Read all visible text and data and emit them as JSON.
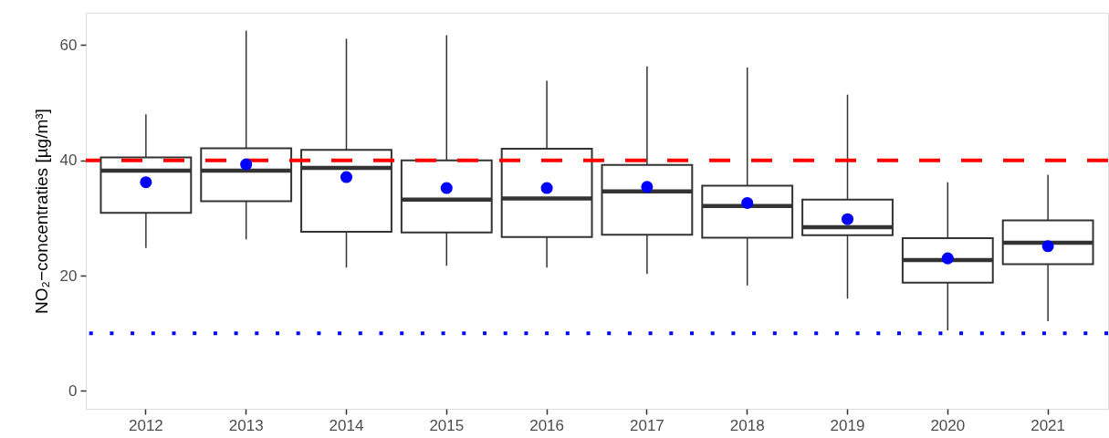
{
  "chart_data": {
    "type": "box",
    "ylabel": "NO₂−concentraties [µg/m³]",
    "categories": [
      "2012",
      "2013",
      "2014",
      "2015",
      "2016",
      "2017",
      "2018",
      "2019",
      "2020",
      "2021"
    ],
    "ylim": [
      -3.1,
      65.6
    ],
    "yticks": [
      0,
      20,
      40,
      60
    ],
    "grid": false,
    "series": [
      {
        "color": "#333333",
        "boxes": [
          {
            "low": 24.8,
            "q1": 30.9,
            "median": 38.2,
            "q3": 40.5,
            "high": 48.0
          },
          {
            "low": 26.3,
            "q1": 32.9,
            "median": 38.2,
            "q3": 42.1,
            "high": 62.5
          },
          {
            "low": 21.4,
            "q1": 27.6,
            "median": 38.7,
            "q3": 41.8,
            "high": 61.1
          },
          {
            "low": 21.7,
            "q1": 27.5,
            "median": 33.2,
            "q3": 40.0,
            "high": 61.7
          },
          {
            "low": 21.4,
            "q1": 26.7,
            "median": 33.4,
            "q3": 42.0,
            "high": 53.8
          },
          {
            "low": 20.3,
            "q1": 27.1,
            "median": 34.6,
            "q3": 39.2,
            "high": 56.3
          },
          {
            "low": 18.3,
            "q1": 26.6,
            "median": 32.1,
            "q3": 35.6,
            "high": 56.1
          },
          {
            "low": 16.0,
            "q1": 27.0,
            "median": 28.4,
            "q3": 33.2,
            "high": 51.4
          },
          {
            "low": 10.5,
            "q1": 18.8,
            "median": 22.7,
            "q3": 26.5,
            "high": 36.2
          },
          {
            "low": 12.1,
            "q1": 22.0,
            "median": 25.7,
            "q3": 29.6,
            "high": 37.5
          }
        ]
      },
      {
        "type": "scatter",
        "color": "#0000ff",
        "marker": "circle",
        "values": [
          36.2,
          39.3,
          37.1,
          35.2,
          35.2,
          35.4,
          32.6,
          29.8,
          23.0,
          25.1
        ]
      }
    ],
    "ref_lines": [
      {
        "axis": "y",
        "value": 40,
        "color": "#ff0000",
        "line_style": "dashed"
      },
      {
        "axis": "y",
        "value": 10,
        "color": "#0000ff",
        "line_style": "dotted"
      }
    ]
  }
}
